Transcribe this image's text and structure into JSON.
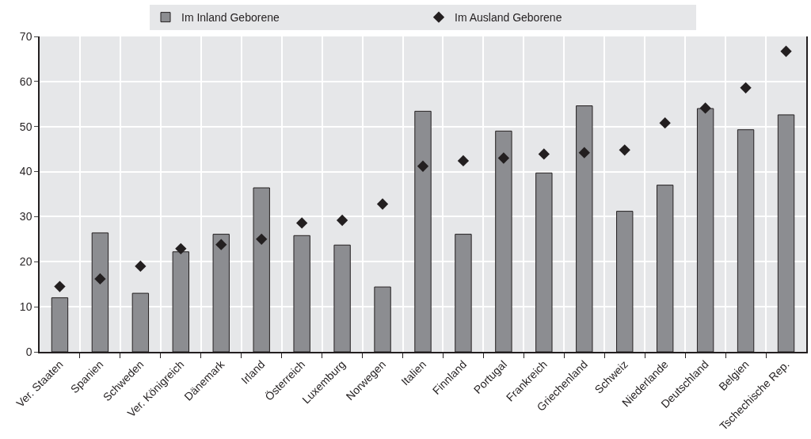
{
  "chart_data": {
    "type": "bar",
    "categories": [
      "Ver. Staaten",
      "Spanien",
      "Schweden",
      "Ver. Königreich",
      "Dänemark",
      "Irland",
      "Österreich",
      "Luxemburg",
      "Norwegen",
      "Italien",
      "Finnland",
      "Portugal",
      "Frankreich",
      "Griechenland",
      "Schweiz",
      "Niederlande",
      "Deutschland",
      "Belgien",
      "Tschechische Rep."
    ],
    "series": [
      {
        "name": "Im Inland Geborene",
        "color": "#8c8d91",
        "values": [
          12,
          26.4,
          13,
          22.2,
          26.1,
          36.4,
          25.8,
          23.7,
          14.4,
          53.4,
          26.1,
          49,
          39.7,
          54.6,
          31.2,
          37,
          54,
          49.3,
          52.6
        ]
      },
      {
        "name": "Im Ausland Geborene",
        "type": "scatter",
        "marker": "diamond",
        "color": "#231f20",
        "values": [
          14.5,
          16.2,
          19,
          22.9,
          23.8,
          25,
          28.6,
          29.2,
          32.8,
          41.2,
          42.4,
          43,
          43.9,
          44.2,
          44.8,
          50.8,
          54.1,
          58.6,
          66.7
        ]
      }
    ],
    "ylim": [
      0,
      70
    ],
    "yticks": [
      0,
      10,
      20,
      30,
      40,
      50,
      60,
      70
    ],
    "grid": true,
    "legend": "top"
  }
}
